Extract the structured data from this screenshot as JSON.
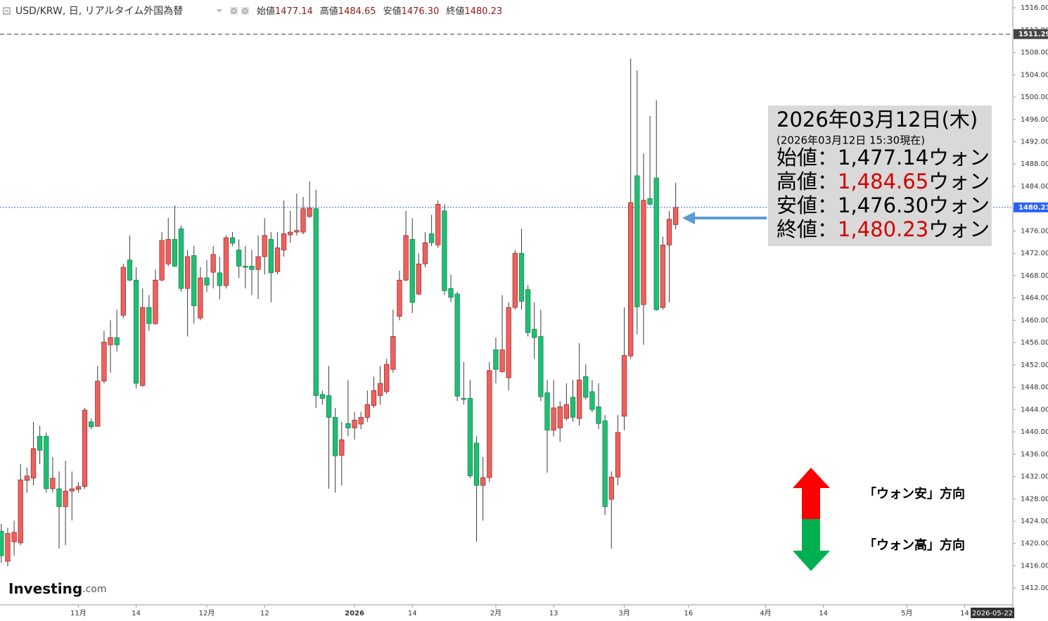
{
  "header": {
    "symbol": "USD/KRW, 日, リアルタイム外国為替",
    "ohlc": [
      {
        "label": "始値",
        "value": "1477.14"
      },
      {
        "label": "高値",
        "value": "1484.65"
      },
      {
        "label": "安値",
        "value": "1476.30"
      },
      {
        "label": "終値",
        "value": "1480.23"
      }
    ]
  },
  "chart_data": {
    "type": "candlestick",
    "up_color": "#f0605d",
    "down_color": "#1fbf73",
    "xlim": [
      -0.2,
      157.5
    ],
    "xticks": [
      {
        "value": 12,
        "label": "11月"
      },
      {
        "value": 21,
        "label": "14"
      },
      {
        "value": 32,
        "label": "12月"
      },
      {
        "value": 41,
        "label": "12"
      },
      {
        "value": 55,
        "label": "2026"
      },
      {
        "value": 64,
        "label": "14"
      },
      {
        "value": 77,
        "label": "2月"
      },
      {
        "value": 86,
        "label": "13"
      },
      {
        "value": 97,
        "label": "3月"
      },
      {
        "value": 107,
        "label": "16"
      },
      {
        "value": 119,
        "label": "4月"
      },
      {
        "value": 128,
        "label": "14"
      },
      {
        "value": 141,
        "label": "5月"
      },
      {
        "value": 150,
        "label": "14"
      }
    ],
    "x_marker": {
      "value": 154,
      "label": "2026-05-22"
    },
    "ylim": [
      1409.0,
      1517.4
    ],
    "yticks": [
      {
        "value": 1516,
        "label": "1516.00"
      },
      {
        "value": 1512,
        "label": "1512.00"
      },
      {
        "value": 1508,
        "label": "1508.00"
      },
      {
        "value": 1504,
        "label": "1504.00"
      },
      {
        "value": 1500,
        "label": "1500.00"
      },
      {
        "value": 1496,
        "label": "1496.00"
      },
      {
        "value": 1492,
        "label": "1492.00"
      },
      {
        "value": 1488,
        "label": "1488.00"
      },
      {
        "value": 1484,
        "label": "1484.00"
      },
      {
        "value": 1480,
        "label": "1480.00"
      },
      {
        "value": 1476,
        "label": "1476.00"
      },
      {
        "value": 1472,
        "label": "1472.00"
      },
      {
        "value": 1468,
        "label": "1468.00"
      },
      {
        "value": 1464,
        "label": "1464.00"
      },
      {
        "value": 1460,
        "label": "1460.00"
      },
      {
        "value": 1456,
        "label": "1456.00"
      },
      {
        "value": 1452,
        "label": "1452.00"
      },
      {
        "value": 1448,
        "label": "1448.00"
      },
      {
        "value": 1444,
        "label": "1444.00"
      },
      {
        "value": 1440,
        "label": "1440.00"
      },
      {
        "value": 1436,
        "label": "1436.00"
      },
      {
        "value": 1432,
        "label": "1432.00"
      },
      {
        "value": 1428,
        "label": "1428.00"
      },
      {
        "value": 1424,
        "label": "1424.00"
      },
      {
        "value": 1420,
        "label": "1420.00"
      },
      {
        "value": 1416,
        "label": "1416.00"
      },
      {
        "value": 1412,
        "label": "1412.00"
      }
    ],
    "ref_lines": [
      {
        "value": 1511.29,
        "color": "#444444",
        "dash": "6 4"
      },
      {
        "value": 1480.23,
        "color": "#2962ff",
        "dash": "2 2"
      }
    ],
    "open": [
      1422.2,
      1416.8,
      1420.3,
      1420.1,
      1431.3,
      1431.7,
      1439.2,
      1439.2,
      1429.8,
      1429.8,
      1426.6,
      1429.4,
      1429.7,
      1430.2,
      1441.8,
      1441.0,
      1449.1,
      1455.6,
      1456.9,
      1460.9,
      1470.8,
      1467.2,
      1448.3,
      1462.3,
      1459.4,
      1467.2,
      1470.1,
      1474.5,
      1476.4,
      1465.7,
      1471.6,
      1460.4,
      1467.6,
      1468.6,
      1468.5,
      1466.2,
      1474.8,
      1472.6,
      1469.7,
      1469.7,
      1469.1,
      1471.4,
      1474.5,
      1468.7,
      1472.6,
      1475.3,
      1475.8,
      1475.8,
      1478.6,
      1480.0,
      1446.7,
      1446.5,
      1442.6,
      1435.8,
      1441.5,
      1440.7,
      1441.4,
      1442.6,
      1444.7,
      1446.5,
      1447.2,
      1451.2,
      1460.7,
      1467.2,
      1474.5,
      1464.7,
      1470.1,
      1475.5,
      1473.5,
      1479.6,
      1465.7,
      1464.7,
      1446.0,
      1446.0,
      1438.0,
      1430.4,
      1431.8,
      1454.7,
      1450.8,
      1449.7,
      1462.3,
      1472.0,
      1465.5,
      1458.4,
      1457.1,
      1447.0,
      1440.3,
      1440.7,
      1442.4,
      1446.2,
      1442.4,
      1449.9,
      1447.2,
      1444.5,
      1442.0,
      1427.9,
      1431.9,
      1442.8,
      1453.6,
      1485.9,
      1462.8,
      1481.8,
      1485.5,
      1462.3,
      1473.5,
      1477.14
    ],
    "high": [
      1423.5,
      1422.8,
      1424.1,
      1434.2,
      1433.6,
      1441.8,
      1441.1,
      1439.9,
      1435.5,
      1432.9,
      1434.8,
      1432.9,
      1431.0,
      1444.3,
      1442.4,
      1451.8,
      1458.1,
      1460.0,
      1461.9,
      1470.1,
      1475.2,
      1469.5,
      1465.7,
      1464.5,
      1469.1,
      1475.8,
      1478.3,
      1480.6,
      1477.0,
      1472.6,
      1473.3,
      1469.5,
      1470.8,
      1473.3,
      1471.4,
      1475.2,
      1475.8,
      1474.5,
      1473.3,
      1472.6,
      1475.2,
      1478.3,
      1475.8,
      1475.8,
      1481.5,
      1479.6,
      1482.7,
      1482.1,
      1484.9,
      1483.4,
      1447.4,
      1451.8,
      1444.3,
      1441.8,
      1449.3,
      1443.6,
      1443.6,
      1447.4,
      1449.9,
      1451.8,
      1453.1,
      1461.9,
      1468.9,
      1479.6,
      1478.3,
      1472.0,
      1475.8,
      1478.9,
      1481.5,
      1480.8,
      1468.2,
      1465.1,
      1452.5,
      1449.3,
      1439.2,
      1435.5,
      1452.5,
      1456.9,
      1464.5,
      1463.2,
      1472.6,
      1476.4,
      1466.3,
      1463.2,
      1461.9,
      1449.3,
      1449.3,
      1445.5,
      1448.7,
      1449.3,
      1455.9,
      1452.1,
      1449.3,
      1448.7,
      1443.0,
      1432.9,
      1443.0,
      1462.3,
      1506.9,
      1504.8,
      1489.9,
      1496.6,
      1499.4,
      1475.0,
      1479.6,
      1484.65
    ],
    "low": [
      1416.5,
      1415.9,
      1417.8,
      1419.7,
      1429.1,
      1430.4,
      1434.2,
      1429.1,
      1429.1,
      1419.1,
      1419.7,
      1424.1,
      1429.1,
      1429.8,
      1440.5,
      1440.9,
      1448.7,
      1450.6,
      1454.4,
      1460.4,
      1467.0,
      1447.8,
      1448.1,
      1458.1,
      1459.2,
      1467.0,
      1469.7,
      1469.5,
      1465.1,
      1457.1,
      1459.4,
      1460.0,
      1465.1,
      1465.7,
      1463.8,
      1465.7,
      1473.3,
      1467.6,
      1465.7,
      1464.5,
      1463.8,
      1468.2,
      1463.2,
      1468.2,
      1471.4,
      1473.9,
      1475.2,
      1475.4,
      1478.3,
      1444.3,
      1444.9,
      1429.8,
      1429.1,
      1430.4,
      1439.2,
      1438.6,
      1440.5,
      1441.8,
      1444.3,
      1444.9,
      1446.8,
      1450.6,
      1460.0,
      1467.0,
      1461.3,
      1464.5,
      1469.5,
      1473.3,
      1473.0,
      1464.5,
      1463.2,
      1445.5,
      1444.9,
      1431.7,
      1420.3,
      1424.1,
      1431.0,
      1448.7,
      1450.6,
      1447.4,
      1461.9,
      1461.9,
      1457.1,
      1453.1,
      1445.5,
      1432.7,
      1439.2,
      1438.2,
      1442.0,
      1441.8,
      1441.1,
      1445.8,
      1443.5,
      1440.5,
      1425.1,
      1419.1,
      1430.4,
      1440.3,
      1453.1,
      1457.5,
      1455.6,
      1480.6,
      1461.7,
      1461.9,
      1463.2,
      1476.3
    ],
    "close": [
      1417.8,
      1421.8,
      1422.0,
      1431.4,
      1432.1,
      1437.0,
      1436.7,
      1429.8,
      1431.7,
      1426.6,
      1429.4,
      1429.8,
      1430.2,
      1443.9,
      1440.9,
      1449.1,
      1456.1,
      1456.9,
      1455.6,
      1469.5,
      1467.2,
      1448.7,
      1462.3,
      1459.4,
      1467.2,
      1474.3,
      1474.5,
      1469.7,
      1465.7,
      1471.4,
      1462.6,
      1467.6,
      1466.3,
      1471.8,
      1466.2,
      1474.8,
      1473.8,
      1469.7,
      1469.5,
      1469.1,
      1471.4,
      1475.2,
      1468.5,
      1473.0,
      1475.5,
      1475.8,
      1476.1,
      1480.0,
      1480.1,
      1446.5,
      1446.0,
      1442.6,
      1435.7,
      1438.6,
      1440.7,
      1442.1,
      1442.6,
      1444.9,
      1447.4,
      1448.7,
      1452.1,
      1457.1,
      1467.2,
      1475.2,
      1463.2,
      1470.1,
      1473.9,
      1473.9,
      1480.8,
      1465.3,
      1464.1,
      1446.4,
      1445.8,
      1432.1,
      1430.4,
      1431.8,
      1451.0,
      1451.2,
      1454.7,
      1462.3,
      1472.0,
      1463.4,
      1457.8,
      1456.9,
      1446.3,
      1440.3,
      1444.3,
      1444.5,
      1444.9,
      1442.6,
      1449.3,
      1446.2,
      1444.0,
      1441.5,
      1426.6,
      1431.9,
      1439.9,
      1453.7,
      1481.1,
      1462.4,
      1481.5,
      1480.8,
      1461.9,
      1473.5,
      1478.1,
      1480.23
    ]
  },
  "annotation": {
    "date": "2026年03月12日(木)",
    "as_of": "(2026年03月12日 15:30現在)",
    "separator": "：",
    "unit": "ウォン",
    "rows": [
      {
        "label": "始値",
        "value": "1,477.14",
        "color": "#000000"
      },
      {
        "label": "高値",
        "value": "1,484.65",
        "color": "#d00000"
      },
      {
        "label": "安値",
        "value": "1,476.30",
        "color": "#000000"
      },
      {
        "label": "終値",
        "value": "1,480.23",
        "color": "#d00000"
      }
    ]
  },
  "direction": {
    "up": "「ウォン安」方向",
    "down": "「ウォン高」方向"
  },
  "logo": {
    "name": "Investing",
    "suffix": ".com"
  }
}
